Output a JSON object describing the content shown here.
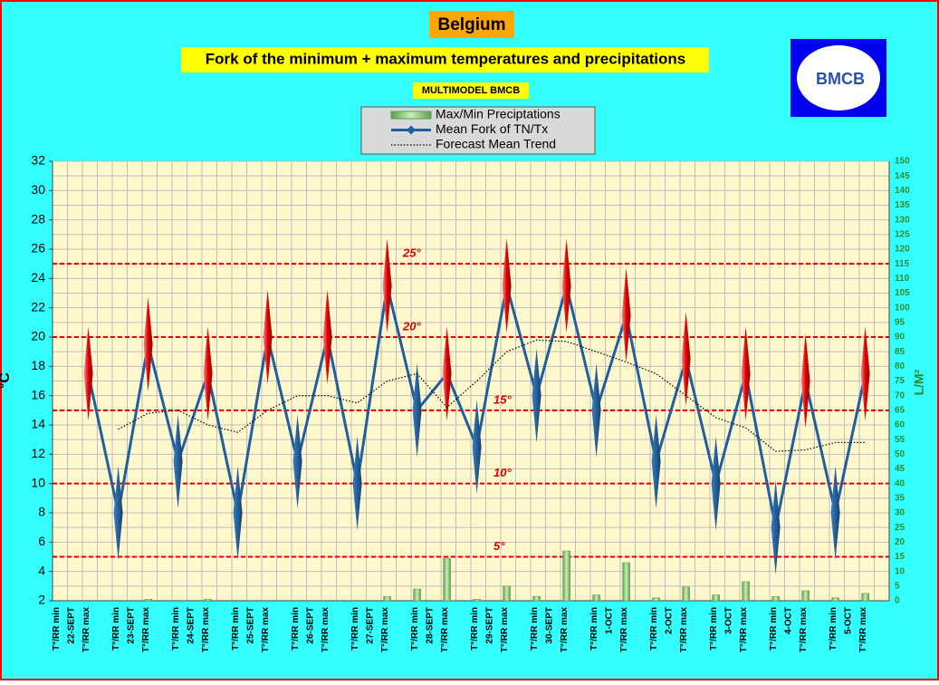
{
  "chart_data": {
    "type": "line",
    "title": "Belgium",
    "subtitle": "Fork of the minimum + maximum temperatures and precipitations",
    "source": "MULTIMODEL BMCB",
    "logo_text": "BMCB",
    "ylabel": "°C",
    "y2label": "L/M²",
    "categories": [
      "T°/RR min",
      "T°/RR max",
      "T°/RR min",
      "T°/RR max",
      "T°/RR min",
      "T°/RR max",
      "T°/RR min",
      "T°/RR max",
      "T°/RR min",
      "T°/RR max",
      "T°/RR min",
      "T°/RR max",
      "T°/RR min",
      "T°/RR max",
      "T°/RR min",
      "T°/RR max",
      "T°/RR min",
      "T°/RR max",
      "T°/RR min",
      "T°/RR max",
      "T°/RR min",
      "T°/RR max",
      "T°/RR min",
      "T°/RR max",
      "T°/RR min",
      "T°/RR max",
      "T°/RR min",
      "T°/RR max"
    ],
    "dates": [
      "22-SEPT",
      "23-SEPT",
      "24-SEPT",
      "25-SEPT",
      "26-SEPT",
      "27-SEPT",
      "28-SEPT",
      "29-SEPT",
      "30-SEPT",
      "1-OCT",
      "2-OCT",
      "3-OCT",
      "4-OCT",
      "5-OCT"
    ],
    "series": [
      {
        "name": "Max/Min Preciptations",
        "color": "#8fc97a",
        "kind": "bar",
        "axis": "y2",
        "values": [
          0,
          0,
          0,
          0.5,
          0,
          0.5,
          0,
          0,
          0,
          0,
          0,
          1.5,
          4,
          14.5,
          0.5,
          5,
          1.5,
          17,
          2,
          13,
          1,
          4.7,
          2,
          6.5,
          1.5,
          3.4,
          1,
          2.5
        ]
      },
      {
        "name": "Mean Fork of TN/Tx",
        "color": "#1f5fa0",
        "kind": "line",
        "values": [
          null,
          17.5,
          8,
          19.5,
          11.5,
          17.5,
          8,
          20,
          11.5,
          20,
          10,
          23.5,
          15,
          17.5,
          12.5,
          23.5,
          16,
          23.5,
          15,
          21.5,
          11.5,
          18.5,
          10,
          17.5,
          7,
          17,
          8,
          17.5
        ]
      },
      {
        "name": "Forecast Mean Trend",
        "color": "#000000",
        "kind": "dotted",
        "values": [
          null,
          null,
          13.7,
          14.8,
          15,
          14,
          13.5,
          15,
          16,
          16,
          15.5,
          17,
          17.5,
          15.2,
          17,
          19,
          19.8,
          19.7,
          19,
          18.3,
          17.5,
          16,
          14.5,
          13.8,
          12.2,
          12.3,
          12.8,
          12.8
        ]
      }
    ],
    "reference_lines": [
      {
        "value": 25,
        "label": "25°"
      },
      {
        "value": 20,
        "label": "20°"
      },
      {
        "value": 15,
        "label": "15°"
      },
      {
        "value": 10,
        "label": "10°"
      },
      {
        "value": 5,
        "label": "5°"
      }
    ],
    "ylim": [
      2,
      32
    ],
    "yticks": [
      2,
      4,
      6,
      8,
      10,
      12,
      14,
      16,
      18,
      20,
      22,
      24,
      26,
      28,
      30,
      32
    ],
    "y2lim": [
      0,
      150
    ],
    "y2ticks": [
      0,
      5,
      10,
      15,
      20,
      25,
      30,
      35,
      40,
      45,
      50,
      55,
      60,
      65,
      70,
      75,
      80,
      85,
      90,
      95,
      100,
      105,
      110,
      115,
      120,
      125,
      130,
      135,
      140,
      145,
      150
    ],
    "grid": true
  }
}
